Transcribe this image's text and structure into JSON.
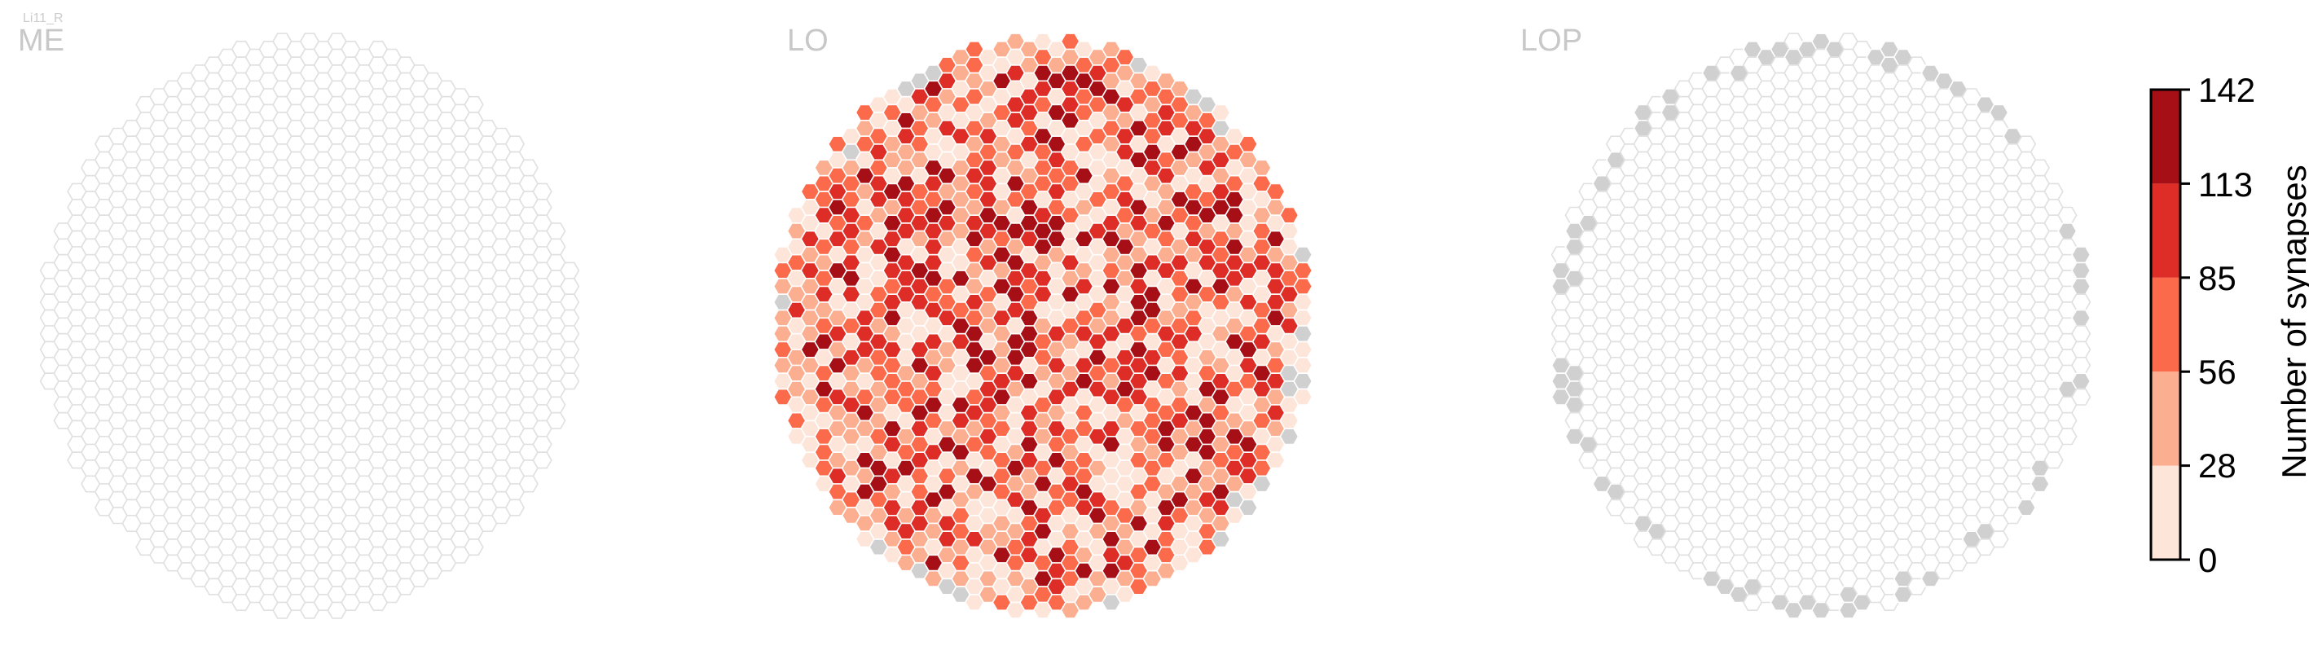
{
  "chart_data": [
    {
      "type": "heatmap",
      "cell_label": "Li11_R",
      "panels": [
        {
          "name": "ME",
          "state": "empty",
          "description_values": "no synapses: all hexagons drawn as white outlines"
        },
        {
          "name": "LO",
          "state": "filled",
          "value_range": [
            0,
            142
          ],
          "description_values": "interior columns colored by synapse count (approx. 0-142); a few rim columns grey (no data)"
        },
        {
          "name": "LOP",
          "state": "empty",
          "description_values": "no synapses: white hexagons, scattered grey rim columns"
        }
      ],
      "colorbar": {
        "label": "Number of synapses",
        "ticks": [
          "142",
          "113",
          "85",
          "56",
          "28",
          "0"
        ],
        "range": [
          0,
          142
        ],
        "bins": 5,
        "colors": [
          "#fee5d9",
          "#fcae91",
          "#fb6a4a",
          "#de2d26",
          "#a50f15"
        ]
      },
      "colors": {
        "empty_fill": "#ffffff",
        "empty_stroke": "#e0e0e0",
        "nodata_fill": "#d0d0d0",
        "label_color": "#c8c8c8"
      }
    }
  ]
}
